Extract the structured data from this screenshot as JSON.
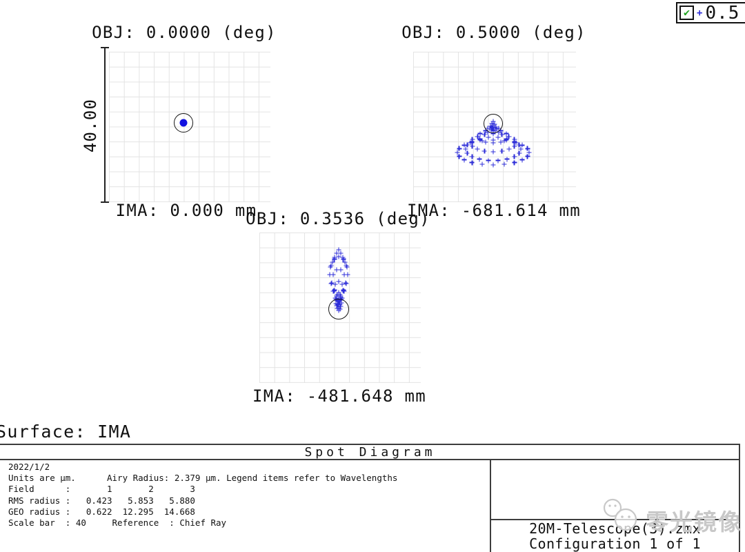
{
  "legend": {
    "wavelength_label": "0.5",
    "check_glyph": "✔",
    "marker_glyph": "+"
  },
  "panels": [
    {
      "id": "field1",
      "title": "OBJ: 0.0000 (deg)",
      "ima_label": "IMA: 0.000 mm",
      "spot": "dot"
    },
    {
      "id": "field2",
      "title": "OBJ: 0.5000 (deg)",
      "ima_label": "IMA: -681.614 mm",
      "points": [
        [
          0,
          -3
        ],
        [
          -2,
          0
        ],
        [
          2,
          1
        ],
        [
          0,
          3
        ],
        [
          -4,
          4
        ],
        [
          4,
          5
        ],
        [
          -1,
          6
        ],
        [
          1,
          8
        ],
        [
          -3,
          9
        ],
        [
          3,
          10
        ],
        [
          0,
          11
        ],
        [
          -5,
          7
        ],
        [
          5,
          8
        ],
        [
          11,
          10
        ],
        [
          7.8,
          13.2
        ],
        [
          0,
          14.5
        ],
        [
          -7.8,
          13.2
        ],
        [
          -11,
          10
        ],
        [
          -7.8,
          6.8
        ],
        [
          0,
          5.5
        ],
        [
          7.8,
          6.8
        ],
        [
          22,
          19
        ],
        [
          19,
          23.5
        ],
        [
          11,
          26.8
        ],
        [
          0,
          28
        ],
        [
          -11,
          26.8
        ],
        [
          -19,
          23.5
        ],
        [
          -22,
          19
        ],
        [
          -19,
          14.5
        ],
        [
          -11,
          11.2
        ],
        [
          0,
          10
        ],
        [
          11,
          11.2
        ],
        [
          19,
          14.5
        ],
        [
          33,
          28
        ],
        [
          30.5,
          33
        ],
        [
          23.3,
          37.2
        ],
        [
          12.6,
          40
        ],
        [
          0,
          41
        ],
        [
          -12.6,
          40
        ],
        [
          -23.3,
          37.2
        ],
        [
          -30.5,
          33
        ],
        [
          -33,
          28
        ],
        [
          -30.5,
          23
        ],
        [
          -23.3,
          18.8
        ],
        [
          -12.6,
          16
        ],
        [
          0,
          15
        ],
        [
          12.6,
          16
        ],
        [
          23.3,
          18.8
        ],
        [
          30.5,
          23
        ],
        [
          40,
          37
        ],
        [
          37.6,
          42.8
        ],
        [
          30.6,
          47.9
        ],
        [
          20,
          51.7
        ],
        [
          7,
          53.7
        ],
        [
          -7,
          53.7
        ],
        [
          -20,
          51.7
        ],
        [
          -30.6,
          47.9
        ],
        [
          -37.6,
          42.8
        ],
        [
          -40,
          37
        ],
        [
          -37.6,
          31.2
        ],
        [
          -30.6,
          26.1
        ],
        [
          -20,
          22.3
        ],
        [
          -7,
          20.3
        ],
        [
          7,
          20.3
        ],
        [
          20,
          22.3
        ],
        [
          30.6,
          26.1
        ],
        [
          37.6,
          31.2
        ],
        [
          52,
          42
        ],
        [
          49.5,
          47.6
        ],
        [
          42.1,
          52.6
        ],
        [
          30.6,
          56.6
        ],
        [
          16.1,
          59.1
        ],
        [
          0,
          60
        ],
        [
          -16.1,
          59.1
        ],
        [
          -30.6,
          56.6
        ],
        [
          -42.1,
          52.6
        ],
        [
          -49.5,
          47.6
        ],
        [
          -52,
          42
        ],
        [
          -49.5,
          36.4
        ],
        [
          -42.1,
          31.4
        ],
        [
          -30.6,
          27.4
        ],
        [
          -16.1,
          24.9
        ],
        [
          0,
          24
        ],
        [
          16.1,
          24.9
        ],
        [
          30.6,
          27.4
        ],
        [
          42.1,
          31.4
        ],
        [
          49.5,
          36.4
        ]
      ]
    },
    {
      "id": "field3",
      "title": "OBJ: 0.3536 (deg)",
      "ima_label": "IMA: -481.648 mm",
      "points": [
        [
          0,
          2
        ],
        [
          -2,
          -1
        ],
        [
          2,
          0
        ],
        [
          0,
          -3
        ],
        [
          -3,
          -5
        ],
        [
          3,
          -4
        ],
        [
          -1,
          -7
        ],
        [
          1,
          -9
        ],
        [
          0,
          -11
        ],
        [
          -2,
          -12
        ],
        [
          2,
          -13
        ],
        [
          0,
          -15
        ],
        [
          -4,
          -8
        ],
        [
          4,
          -9
        ],
        [
          -3,
          -16
        ],
        [
          3,
          -17
        ],
        [
          0,
          -19
        ],
        [
          4,
          -14
        ],
        [
          2,
          -7.1
        ],
        [
          -2,
          -7.1
        ],
        [
          -4,
          -14
        ],
        [
          -2,
          -20.9
        ],
        [
          2,
          -20.9
        ],
        [
          7,
          -26
        ],
        [
          4.9,
          -16.1
        ],
        [
          0,
          -12
        ],
        [
          -4.9,
          -16.1
        ],
        [
          -7,
          -26
        ],
        [
          -4.9,
          -35.9
        ],
        [
          0,
          -40
        ],
        [
          4.9,
          -35.9
        ],
        [
          10,
          -38
        ],
        [
          8.1,
          -26.2
        ],
        [
          3.1,
          -19
        ],
        [
          -3.1,
          -19
        ],
        [
          -8.1,
          -26.2
        ],
        [
          -10,
          -38
        ],
        [
          -8.1,
          -49.8
        ],
        [
          -3.1,
          -57
        ],
        [
          3.1,
          -57
        ],
        [
          8.1,
          -49.8
        ],
        [
          13,
          -50
        ],
        [
          11.3,
          -37
        ],
        [
          6.5,
          -27.5
        ],
        [
          0,
          -24
        ],
        [
          -6.5,
          -27.5
        ],
        [
          -11.3,
          -37
        ],
        [
          -13,
          -50
        ],
        [
          -11.3,
          -63
        ],
        [
          -6.5,
          -72.5
        ],
        [
          0,
          -76
        ],
        [
          6.5,
          -72.5
        ],
        [
          11.3,
          -63
        ],
        [
          0,
          -86
        ],
        [
          -3,
          -81
        ],
        [
          3,
          -81
        ],
        [
          -6,
          -75
        ],
        [
          6,
          -75
        ],
        [
          -9,
          -68
        ],
        [
          9,
          -68
        ],
        [
          -12,
          -61
        ],
        [
          12,
          -61
        ]
      ]
    }
  ],
  "scale_bar": {
    "label": "40.00"
  },
  "surface_label": "Surface: IMA",
  "footer": {
    "title": "Spot Diagram",
    "info_lines": [
      "2022/1/2",
      "Units are μm.      Airy Radius: 2.379 μm. Legend items refer to Wavelengths",
      "Field      :       1       2       3",
      "RMS radius :   0.423   5.853   5.880",
      "GEO radius :   0.622  12.295  14.668",
      "Scale bar  : 40     Reference  : Chief Ray"
    ],
    "file_name": "20M-Telescope(3).zmx",
    "configuration": "Configuration 1 of 1"
  },
  "watermark": {
    "text": "零光镜像"
  },
  "colors": {
    "spot": "#1010e0",
    "plus": "#2d2dd8",
    "grid": "#e3e3e3",
    "line": "#3d3d3d",
    "check_green": "#1fa41f",
    "watermark": "#c8c8c8"
  },
  "chart_data": {
    "type": "scatter",
    "title": "Spot Diagram",
    "surface": "IMA",
    "wavelength_um": 0.5,
    "units": "μm",
    "airy_radius_um": 2.379,
    "scale_bar_um": 40,
    "reference": "Chief Ray",
    "fields": [
      {
        "field": 1,
        "obj_deg": 0.0,
        "ima_mm": 0.0,
        "rms_radius_um": 0.423,
        "geo_radius_um": 0.622
      },
      {
        "field": 2,
        "obj_deg": 0.5,
        "ima_mm": -681.614,
        "rms_radius_um": 5.853,
        "geo_radius_um": 12.295
      },
      {
        "field": 3,
        "obj_deg": 0.3536,
        "ima_mm": -481.648,
        "rms_radius_um": 5.88,
        "geo_radius_um": 14.668
      }
    ]
  }
}
